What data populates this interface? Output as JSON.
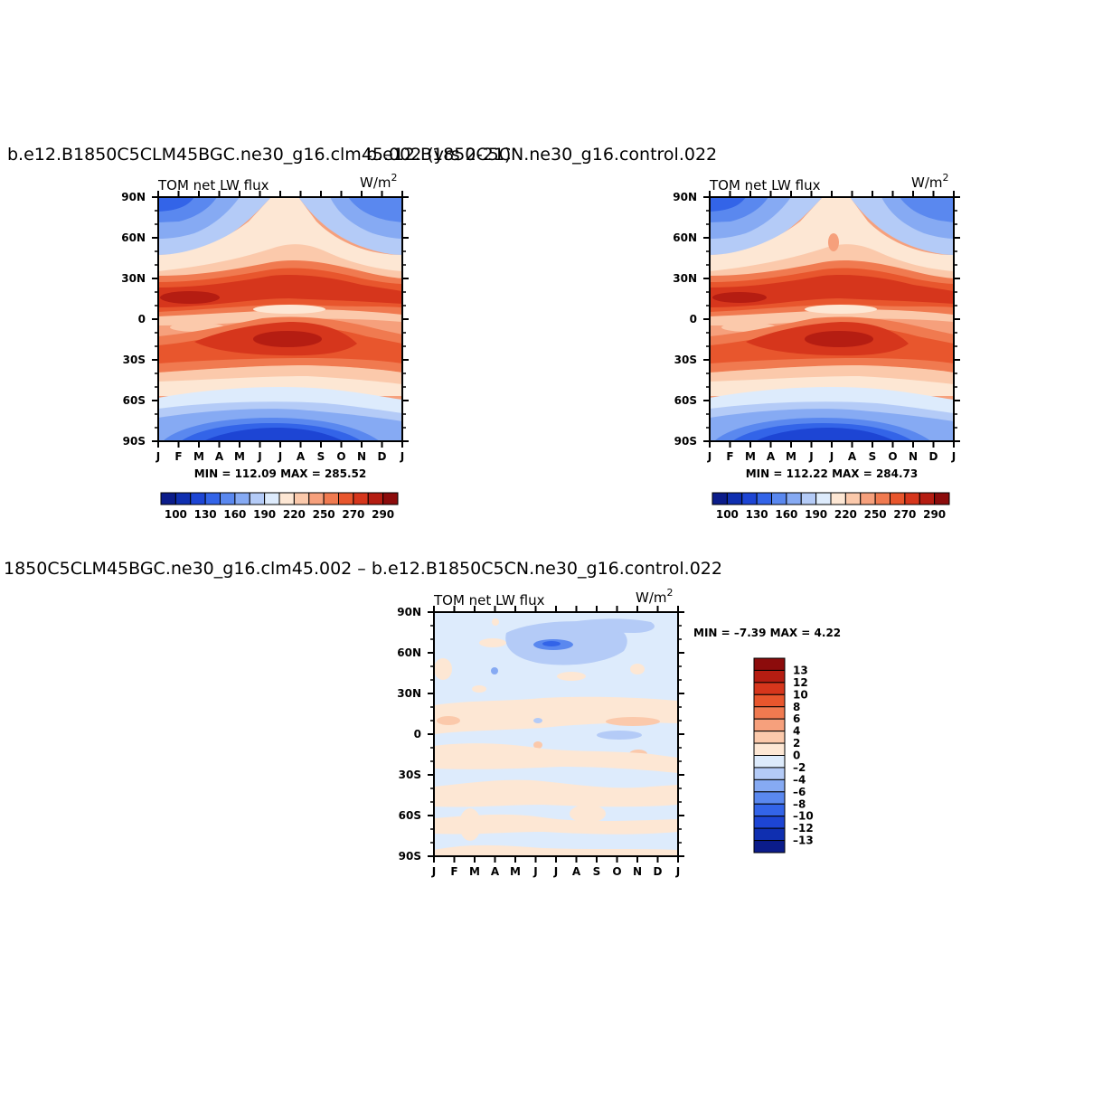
{
  "chart_data": [
    {
      "type": "heatmap",
      "title": "b.e12.B1850C5CLM45BGC.ne30_g16.clm45.002 (yrs 2-21)",
      "left_label": "TOM net LW flux",
      "units": "W/m²",
      "x_ticks": [
        "J",
        "F",
        "M",
        "A",
        "M",
        "J",
        "J",
        "A",
        "S",
        "O",
        "N",
        "D",
        "J"
      ],
      "y_ticks": [
        "90N",
        "60N",
        "30N",
        "0",
        "30S",
        "60S",
        "90S"
      ],
      "stats": "MIN = 112.09 MAX = 285.52",
      "min": 112.09,
      "max": 285.52,
      "colorbar": {
        "colors": [
          "#0b1c8a",
          "#0f2fb0",
          "#1d45d4",
          "#3364e8",
          "#5a88ef",
          "#86aaf3",
          "#b4cbf7",
          "#ddebfc",
          "#fde7d4",
          "#fbc9ab",
          "#f6a07c",
          "#f07a50",
          "#e8562d",
          "#d6361c",
          "#b51d12",
          "#8c0c0c"
        ],
        "labels": [
          "100",
          "130",
          "160",
          "190",
          "220",
          "250",
          "270",
          "290"
        ]
      }
    },
    {
      "type": "heatmap",
      "title": "b.e12.B1850C5CN.ne30_g16.control.022",
      "left_label": "TOM net LW flux",
      "units": "W/m²",
      "x_ticks": [
        "J",
        "F",
        "M",
        "A",
        "M",
        "J",
        "J",
        "A",
        "S",
        "O",
        "N",
        "D",
        "J"
      ],
      "y_ticks": [
        "90N",
        "60N",
        "30N",
        "0",
        "30S",
        "60S",
        "90S"
      ],
      "stats": "MIN = 112.22 MAX = 284.73",
      "min": 112.22,
      "max": 284.73,
      "colorbar": {
        "colors": [
          "#0b1c8a",
          "#0f2fb0",
          "#1d45d4",
          "#3364e8",
          "#5a88ef",
          "#86aaf3",
          "#b4cbf7",
          "#ddebfc",
          "#fde7d4",
          "#fbc9ab",
          "#f6a07c",
          "#f07a50",
          "#e8562d",
          "#d6361c",
          "#b51d12",
          "#8c0c0c"
        ],
        "labels": [
          "100",
          "130",
          "160",
          "190",
          "220",
          "250",
          "270",
          "290"
        ]
      }
    },
    {
      "type": "heatmap",
      "title": "1850C5CLM45BGC.ne30_g16.clm45.002 – b.e12.B1850C5CN.ne30_g16.control.022",
      "left_label": "TOM net LW flux",
      "units": "W/m²",
      "x_ticks": [
        "J",
        "F",
        "M",
        "A",
        "M",
        "J",
        "J",
        "A",
        "S",
        "O",
        "N",
        "D",
        "J"
      ],
      "y_ticks": [
        "90N",
        "60N",
        "30N",
        "0",
        "30S",
        "60S",
        "90S"
      ],
      "stats": "MIN =   –7.39 MAX =    4.22",
      "min": -7.39,
      "max": 4.22,
      "colorbar": {
        "colors": [
          "#8c0c0c",
          "#b51d12",
          "#d6361c",
          "#e8562d",
          "#f07a50",
          "#f6a07c",
          "#fbc9ab",
          "#fde7d4",
          "#ddebfc",
          "#b4cbf7",
          "#86aaf3",
          "#5a88ef",
          "#3364e8",
          "#1d45d4",
          "#0f2fb0",
          "#0b1c8a"
        ],
        "labels": [
          "13",
          "12",
          "10",
          "8",
          "6",
          "4",
          "2",
          "0",
          "–2",
          "–4",
          "–6",
          "–8",
          "–10",
          "–12",
          "–13"
        ]
      }
    }
  ]
}
